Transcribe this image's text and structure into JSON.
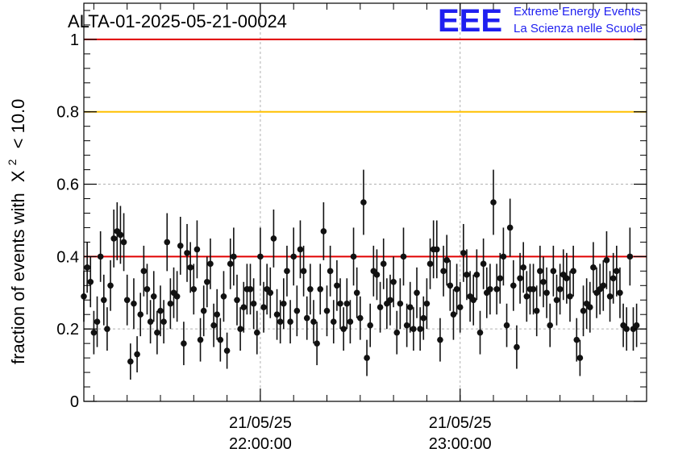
{
  "chart_data": {
    "type": "scatter",
    "title": "ALTA-01-2025-05-21-00024",
    "logo": {
      "mark": "EEE",
      "line1": "Extreme Energy Events",
      "line2": "La Scienza nelle Scuole"
    },
    "ylabel": "fraction of events with",
    "ylabel_symbol": "X",
    "ylabel_sup": "2",
    "ylabel_tail": "< 10.0",
    "xlabel": "",
    "ylim": [
      0,
      1.1
    ],
    "x_time_range": [
      "2025-05-21 21:07:00",
      "2025-05-21 23:56:00"
    ],
    "x_tick_labels": [
      {
        "date": "21/05/25",
        "time": "22:00:00",
        "at": "2025-05-21 22:00:00"
      },
      {
        "date": "21/05/25",
        "time": "23:00:00",
        "at": "2025-05-21 23:00:00"
      }
    ],
    "y_tick_labels": [
      "0",
      "0.2",
      "0.4",
      "0.6",
      "0.8",
      "1"
    ],
    "y_ticks": [
      0,
      0.2,
      0.4,
      0.6,
      0.8,
      1.0
    ],
    "grid": true,
    "reference_lines": [
      {
        "y": 1.0,
        "color": "#e00000"
      },
      {
        "y": 0.8,
        "color": "#ffc000"
      },
      {
        "y": 0.4,
        "color": "#e00000"
      }
    ],
    "marker_color": "#111111",
    "series": [
      {
        "x_start": "2025-05-21 21:07:00",
        "x_step_minutes": 1,
        "y": [
          0.29,
          0.37,
          0.33,
          0.19,
          0.22,
          0.4,
          0.28,
          0.2,
          0.32,
          0.45,
          0.47,
          0.46,
          0.44,
          0.28,
          0.11,
          0.27,
          0.13,
          0.24,
          0.36,
          0.31,
          0.22,
          0.29,
          0.19,
          0.25,
          0.22,
          0.44,
          0.27,
          0.3,
          0.29,
          0.43,
          0.16,
          0.41,
          0.37,
          0.31,
          0.42,
          0.17,
          0.25,
          0.33,
          0.38,
          0.21,
          0.24,
          0.17,
          0.29,
          0.14,
          0.38,
          0.4,
          0.28,
          0.2,
          0.26,
          0.31,
          0.31,
          0.27,
          0.19,
          0.4,
          0.26,
          0.31,
          0.3,
          0.45,
          0.24,
          0.22,
          0.27,
          0.36,
          0.22,
          0.4,
          0.25,
          0.42,
          0.36,
          0.23,
          0.31,
          0.22,
          0.16,
          0.31,
          0.47,
          0.25,
          0.36,
          0.22,
          0.32,
          0.27,
          0.2,
          0.27,
          0.22,
          0.4,
          0.3,
          0.23,
          0.55,
          0.12,
          0.21,
          0.36,
          0.35,
          0.26,
          0.38,
          0.27,
          0.28,
          0.33,
          0.19,
          0.27,
          0.4,
          0.21,
          0.26,
          0.2,
          0.3,
          0.2,
          0.23,
          0.27,
          0.38,
          0.42,
          0.42,
          0.17,
          0.36,
          0.39,
          0.32,
          0.24,
          0.31,
          0.26,
          0.41,
          0.35,
          0.29,
          0.28,
          0.35,
          0.19,
          0.38,
          0.3,
          0.31,
          0.55,
          0.31,
          0.34,
          0.4,
          0.21,
          0.48,
          0.32,
          0.15,
          0.34,
          0.37,
          0.29,
          0.31,
          0.31,
          0.25,
          0.36,
          0.33,
          0.3,
          0.21,
          0.36,
          0.28,
          0.31,
          0.35,
          0.34,
          0.29,
          0.36,
          0.17,
          0.12,
          0.25,
          0.27,
          0.26,
          0.37,
          0.3,
          0.31,
          0.32,
          0.39,
          0.29,
          0.34,
          0.36,
          0.3,
          0.21,
          0.2,
          0.4,
          0.2,
          0.21
        ],
        "err": [
          0.07,
          0.07,
          0.07,
          0.06,
          0.07,
          0.07,
          0.07,
          0.06,
          0.07,
          0.08,
          0.08,
          0.08,
          0.08,
          0.07,
          0.05,
          0.07,
          0.05,
          0.06,
          0.07,
          0.07,
          0.06,
          0.07,
          0.06,
          0.07,
          0.06,
          0.08,
          0.07,
          0.07,
          0.07,
          0.08,
          0.06,
          0.08,
          0.07,
          0.07,
          0.08,
          0.06,
          0.07,
          0.07,
          0.07,
          0.06,
          0.07,
          0.06,
          0.07,
          0.05,
          0.07,
          0.08,
          0.07,
          0.06,
          0.07,
          0.07,
          0.07,
          0.07,
          0.06,
          0.08,
          0.07,
          0.07,
          0.07,
          0.08,
          0.07,
          0.06,
          0.07,
          0.07,
          0.06,
          0.08,
          0.07,
          0.08,
          0.07,
          0.06,
          0.07,
          0.06,
          0.06,
          0.07,
          0.08,
          0.07,
          0.07,
          0.06,
          0.07,
          0.07,
          0.06,
          0.07,
          0.06,
          0.08,
          0.07,
          0.06,
          0.09,
          0.05,
          0.06,
          0.07,
          0.07,
          0.07,
          0.07,
          0.07,
          0.07,
          0.07,
          0.06,
          0.07,
          0.08,
          0.06,
          0.07,
          0.06,
          0.07,
          0.06,
          0.06,
          0.07,
          0.07,
          0.08,
          0.08,
          0.06,
          0.07,
          0.07,
          0.07,
          0.07,
          0.07,
          0.07,
          0.08,
          0.07,
          0.07,
          0.07,
          0.07,
          0.06,
          0.07,
          0.07,
          0.07,
          0.09,
          0.07,
          0.07,
          0.08,
          0.06,
          0.08,
          0.07,
          0.06,
          0.07,
          0.07,
          0.07,
          0.07,
          0.07,
          0.07,
          0.07,
          0.07,
          0.07,
          0.06,
          0.07,
          0.07,
          0.07,
          0.07,
          0.07,
          0.07,
          0.07,
          0.06,
          0.05,
          0.07,
          0.07,
          0.07,
          0.07,
          0.07,
          0.07,
          0.07,
          0.08,
          0.07,
          0.07,
          0.07,
          0.07,
          0.06,
          0.06,
          0.08,
          0.06,
          0.06
        ]
      }
    ]
  }
}
